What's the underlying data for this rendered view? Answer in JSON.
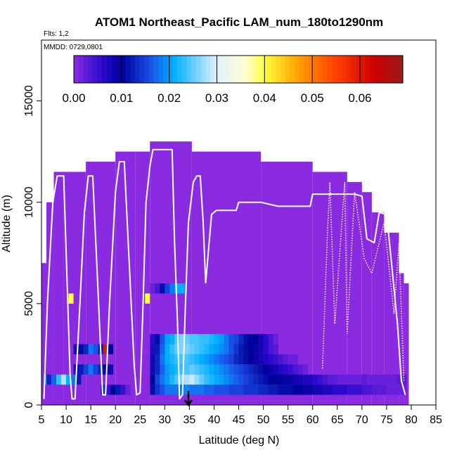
{
  "chart_data": {
    "type": "heatmap",
    "title": "ATOM1 Northeast_Pacific LAM_num_180to1290nm",
    "flights_label": "Flts: 1,2",
    "dates_label": "MMDD: 0729,0801",
    "xlabel": "Latitude (deg N)",
    "ylabel": "Altitude (m)",
    "xlim": [
      5,
      85
    ],
    "ylim": [
      0,
      18000
    ],
    "xticks": [
      5,
      10,
      15,
      20,
      25,
      30,
      35,
      40,
      45,
      50,
      55,
      60,
      65,
      70,
      75,
      80,
      85
    ],
    "yticks": [
      0,
      5000,
      10000,
      15000
    ],
    "colorbar": {
      "min": 0,
      "max": 0.069,
      "ticks": [
        0.0,
        0.01,
        0.02,
        0.03,
        0.04,
        0.05,
        0.06
      ],
      "tick_labels": [
        "0.00",
        "0.01",
        "0.02",
        "0.03",
        "0.04",
        "0.05",
        "0.06"
      ],
      "stops": [
        {
          "v": 0.0,
          "color": "#8a2be2"
        },
        {
          "v": 0.006,
          "color": "#2a0acc"
        },
        {
          "v": 0.01,
          "color": "#00009a"
        },
        {
          "v": 0.016,
          "color": "#1a50e8"
        },
        {
          "v": 0.021,
          "color": "#00b0ff"
        },
        {
          "v": 0.03,
          "color": "#e2f0ff"
        },
        {
          "v": 0.036,
          "color": "#ffffd0"
        },
        {
          "v": 0.04,
          "color": "#ffff40"
        },
        {
          "v": 0.047,
          "color": "#ffa000"
        },
        {
          "v": 0.055,
          "color": "#ff4000"
        },
        {
          "v": 0.063,
          "color": "#cc0000"
        },
        {
          "v": 0.069,
          "color": "#9a1a1a"
        }
      ]
    },
    "background_columns": [
      {
        "lat0": 5.0,
        "lat1": 6.0,
        "top": 7000
      },
      {
        "lat0": 6.0,
        "lat1": 7.5,
        "top": 10000
      },
      {
        "lat0": 7.5,
        "lat1": 9.5,
        "top": 11500
      },
      {
        "lat0": 9.5,
        "lat1": 14.0,
        "top": 11500
      },
      {
        "lat0": 14.0,
        "lat1": 20.0,
        "top": 12000
      },
      {
        "lat0": 20.0,
        "lat1": 24.0,
        "top": 12500
      },
      {
        "lat0": 24.0,
        "lat1": 27.0,
        "top": 12500
      },
      {
        "lat0": 27.0,
        "lat1": 35.5,
        "top": 13000
      },
      {
        "lat0": 35.5,
        "lat1": 45.0,
        "top": 12500
      },
      {
        "lat0": 45.0,
        "lat1": 49.5,
        "top": 12500
      },
      {
        "lat0": 49.5,
        "lat1": 60.0,
        "top": 12000
      },
      {
        "lat0": 60.0,
        "lat1": 67.0,
        "top": 11500
      },
      {
        "lat0": 67.0,
        "lat1": 70.0,
        "top": 11000
      },
      {
        "lat0": 70.0,
        "lat1": 72.0,
        "top": 10500
      },
      {
        "lat0": 72.0,
        "lat1": 74.5,
        "top": 9500
      },
      {
        "lat0": 74.5,
        "lat1": 77.5,
        "top": 8500
      },
      {
        "lat0": 77.5,
        "lat1": 78.5,
        "top": 6500
      },
      {
        "lat0": 78.5,
        "lat1": 79.5,
        "top": 6000
      }
    ],
    "cells": [
      {
        "lat0": 10.5,
        "lat1": 11.5,
        "alt0": 5000,
        "alt1": 5500,
        "value": 0.04
      },
      {
        "lat0": 26.0,
        "lat1": 27.0,
        "alt0": 5000,
        "alt1": 5500,
        "value": 0.04
      },
      {
        "lat0": 17.5,
        "lat1": 18.5,
        "alt0": 2500,
        "alt1": 3000,
        "value": 0.06
      },
      {
        "lat0": 5.5,
        "lat1": 6.0,
        "alt0": 1000,
        "alt1": 1500,
        "value": 0.021
      }
    ],
    "cell_runs": [
      {
        "lat0": 27.0,
        "alt0": 5500,
        "alt1": 6000,
        "values": [
          0.002,
          0.004,
          0.011,
          0.015,
          0.018,
          0.021,
          0.021
        ]
      },
      {
        "lat0": 6.0,
        "alt0": 1000,
        "alt1": 1500,
        "values": [
          0.013,
          0.017,
          0.023,
          0.028,
          0.021,
          0.018,
          0.012
        ]
      },
      {
        "lat0": 11.5,
        "alt0": 2500,
        "alt1": 3000,
        "values": [
          0.008,
          0.011,
          0.013,
          0.018,
          0.016,
          0.012,
          0.016,
          0.01
        ]
      },
      {
        "lat0": 11.5,
        "alt0": 1500,
        "alt1": 2000,
        "values": [
          0.008,
          0.012,
          0.015,
          0.018,
          0.015,
          0.013,
          0.01,
          0.008
        ]
      },
      {
        "lat0": 17.0,
        "alt0": 500,
        "alt1": 1000,
        "values": [
          0.013,
          0.005,
          0.01,
          0.012,
          0.005,
          0.002
        ]
      },
      {
        "lat0": 27.0,
        "alt0": 3000,
        "alt1": 3500,
        "values": [
          0.006,
          0.011,
          0.016,
          0.02,
          0.021,
          0.024,
          0.026,
          0.025,
          0.024,
          0.024,
          0.023,
          0.023,
          0.022,
          0.021,
          0.02,
          0.018,
          0.016,
          0.015,
          0.013,
          0.011,
          0.01,
          0.01,
          0.008,
          0.006,
          0.004,
          0.002
        ]
      },
      {
        "lat0": 27.0,
        "alt0": 2500,
        "alt1": 3000,
        "values": [
          0.007,
          0.012,
          0.017,
          0.021,
          0.023,
          0.025,
          0.026,
          0.026,
          0.025,
          0.024,
          0.023,
          0.022,
          0.021,
          0.02,
          0.019,
          0.018,
          0.016,
          0.014,
          0.012,
          0.011,
          0.01,
          0.009,
          0.008,
          0.006,
          0.004,
          0.003
        ]
      },
      {
        "lat0": 27.0,
        "alt0": 2000,
        "alt1": 2500,
        "values": [
          0.008,
          0.013,
          0.018,
          0.021,
          0.022,
          0.023,
          0.024,
          0.024,
          0.023,
          0.022,
          0.021,
          0.02,
          0.019,
          0.018,
          0.017,
          0.016,
          0.015,
          0.013,
          0.012,
          0.011,
          0.01,
          0.009,
          0.008,
          0.007,
          0.006,
          0.005,
          0.004,
          0.003,
          0.002,
          0.002
        ]
      },
      {
        "lat0": 27.0,
        "alt0": 1500,
        "alt1": 2000,
        "values": [
          0.008,
          0.013,
          0.017,
          0.02,
          0.021,
          0.022,
          0.023,
          0.024,
          0.025,
          0.024,
          0.023,
          0.022,
          0.021,
          0.02,
          0.019,
          0.018,
          0.017,
          0.016,
          0.015,
          0.014,
          0.013,
          0.012,
          0.011,
          0.01,
          0.009,
          0.008,
          0.007,
          0.006,
          0.005,
          0.004,
          0.003,
          0.002
        ]
      },
      {
        "lat0": 27.0,
        "alt0": 1000,
        "alt1": 1500,
        "values": [
          0.01,
          0.015,
          0.018,
          0.02,
          0.022,
          0.024,
          0.026,
          0.028,
          0.029,
          0.027,
          0.025,
          0.023,
          0.022,
          0.021,
          0.02,
          0.019,
          0.018,
          0.017,
          0.016,
          0.015,
          0.014,
          0.013,
          0.012,
          0.011,
          0.01,
          0.01,
          0.01,
          0.009,
          0.009,
          0.008,
          0.008,
          0.007,
          0.007,
          0.006,
          0.005,
          0.004,
          0.003,
          0.003,
          0.002,
          0.002,
          0.002,
          0.002,
          0.002,
          0.003,
          0.002,
          0.002,
          0.002,
          0.002,
          0.002,
          0.002,
          0.003,
          0.003
        ]
      },
      {
        "lat0": 27.0,
        "alt0": 500,
        "alt1": 1000,
        "values": [
          0.011,
          0.014,
          0.016,
          0.018,
          0.018,
          0.018,
          0.018,
          0.019,
          0.018,
          0.018,
          0.018,
          0.017,
          0.017,
          0.016,
          0.016,
          0.016,
          0.015,
          0.015,
          0.015,
          0.014,
          0.014,
          0.014,
          0.013,
          0.013,
          0.012,
          0.012,
          0.011,
          0.011,
          0.011,
          0.01,
          0.01,
          0.009,
          0.009,
          0.008,
          0.008,
          0.007,
          0.007,
          0.006,
          0.006,
          0.006,
          0.005,
          0.005,
          0.005,
          0.004,
          0.004,
          0.003,
          0.003,
          0.003,
          0.002,
          0.002,
          0.002,
          0.002
        ]
      }
    ],
    "flight_track": [
      [
        5.5,
        300
      ],
      [
        6.2,
        5000
      ],
      [
        7.3,
        10000
      ],
      [
        8.2,
        11300
      ],
      [
        9.5,
        11300
      ],
      [
        10.2,
        6000
      ],
      [
        10.8,
        1500
      ],
      [
        11.2,
        300
      ],
      [
        11.8,
        300
      ],
      [
        12.8,
        5000
      ],
      [
        13.7,
        9500
      ],
      [
        14.5,
        11300
      ],
      [
        15.4,
        11300
      ],
      [
        16.5,
        5500
      ],
      [
        17.4,
        500
      ],
      [
        18.0,
        500
      ],
      [
        18.8,
        5000
      ],
      [
        20.0,
        10500
      ],
      [
        20.8,
        12000
      ],
      [
        21.8,
        12000
      ],
      [
        22.8,
        7000
      ],
      [
        23.8,
        2000
      ],
      [
        24.3,
        500
      ],
      [
        25.0,
        600
      ],
      [
        25.6,
        5000
      ],
      [
        26.2,
        10000
      ],
      [
        27.0,
        11800
      ],
      [
        27.6,
        12600
      ],
      [
        31.5,
        12600
      ],
      [
        32.0,
        8000
      ],
      [
        32.6,
        4000
      ],
      [
        33.0,
        300
      ],
      [
        33.6,
        500
      ],
      [
        34.2,
        5000
      ],
      [
        34.8,
        9000
      ],
      [
        35.8,
        11000
      ],
      [
        36.5,
        11300
      ],
      [
        37.2,
        11300
      ],
      [
        37.8,
        9000
      ],
      [
        38.3,
        6000
      ]
    ],
    "arrow_lat": 34.8
  }
}
